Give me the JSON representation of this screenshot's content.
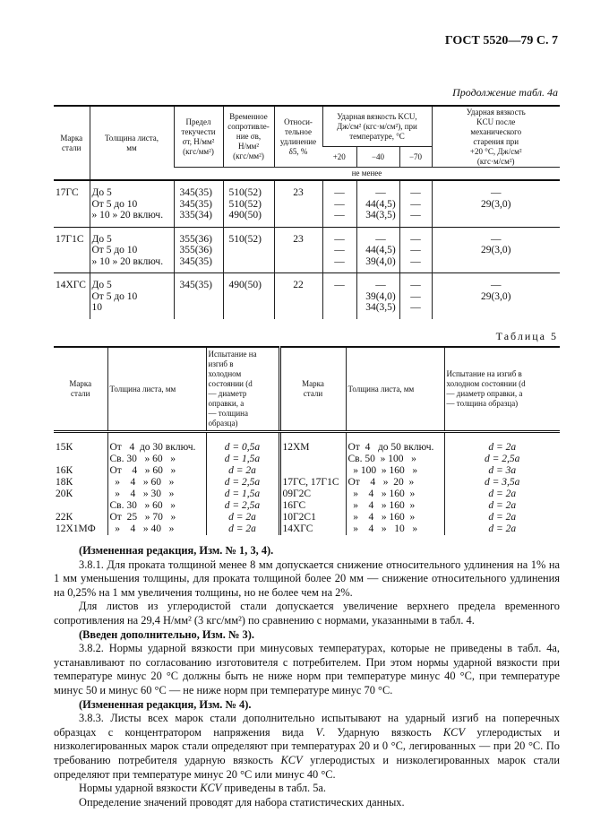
{
  "page_header": "ГОСТ 5520—79 С. 7",
  "table4a": {
    "continuation": "Продолжение табл. 4а",
    "headers": {
      "grade": "Марка\nстали",
      "thickness": "Толщина листа,\nмм",
      "yield": "Предел\nтекучести\nσт, Н/мм²\n(кгс/мм²)",
      "tensile": "Временное\nсопротивле-\nние σв,\nН/мм²\n(кгс/мм²)",
      "elongation": "Относи-\nтельное\nудлинение\nδ5, %",
      "impact": "Ударная вязкость KCU,\nДж/см² (кгс·м/см²), при\nтемпературе, °С",
      "t20": "+20",
      "t40": "−40",
      "t70": "−70",
      "aged": "Ударная вязкость\nKCU после\nмеханического\nстарения при\n+20 °С, Дж/см²\n(кгс·м/см²)",
      "min_note": "не менее"
    },
    "rows": [
      {
        "grade": "17ГС",
        "thickness": "До 5\nОт  5 до  10\n   » 10  »   20 включ.",
        "yield": "345(35)\n345(35)\n335(34)",
        "tensile": "510(52)\n510(52)\n490(50)",
        "elongation": "23",
        "t20": "—\n—\n—",
        "t40": "—\n44(4,5)\n34(3,5)",
        "t70": "—\n—\n—",
        "aged": "—\n29(3,0)"
      },
      {
        "grade": "17Г1С",
        "thickness": "До 5\nОт  5 до  10\n   » 10  »   20 включ.",
        "yield": "355(36)\n355(36)\n345(35)",
        "tensile": "510(52)",
        "elongation": "23",
        "t20": "—\n—\n—",
        "t40": "—\n44(4,5)\n39(4,0)",
        "t70": "—\n—\n—",
        "aged": "—\n29(3,0)"
      },
      {
        "grade": "14ХГС",
        "thickness": "До 5\nОт  5 до  10\n    10",
        "yield": "345(35)",
        "tensile": "490(50)",
        "elongation": "22",
        "t20": "—",
        "t40": "—\n39(4,0)\n34(3,5)",
        "t70": "—\n—\n—",
        "aged": "—\n29(3,0)"
      }
    ]
  },
  "table5": {
    "caption": "Таблица 5",
    "headers": {
      "grade": "Марка\nстали",
      "thickness": "Толщина листа, мм",
      "bend": "Испытание на изгиб в\nхолодном состоянии (d\n— диаметр оправки, a\n— толщина образца)"
    },
    "rows": [
      [
        "15К",
        "От   4  до 30 включ.",
        "d = 0,5a",
        "12ХМ",
        "От  4   до 50 включ.",
        "d = 2a"
      ],
      [
        "",
        "Св. 30   » 60   »",
        "d = 1,5a",
        "",
        "Св. 50  » 100   »",
        "d = 2,5a"
      ],
      [
        "16К",
        "От    4   » 60   »",
        "d = 2a",
        "",
        "  » 100  » 160   »",
        "d = 3a"
      ],
      [
        "18К",
        "  »    4   » 60   »",
        "d = 2,5a",
        "17ГС, 17Г1С",
        "От    4   »  20  »",
        "d = 3,5a"
      ],
      [
        "20К",
        "  »    4   » 30   »",
        "d = 1,5a",
        "09Г2С",
        "  »    4   » 160  »",
        "d = 2a"
      ],
      [
        "",
        "Св. 30   » 60   »",
        "d = 2,5a",
        "16ГС",
        "  »    4   » 160  »",
        "d = 2a"
      ],
      [
        "22К",
        "От  25   » 70   »",
        "d = 2a",
        "10Г2С1",
        "  »    4   » 160  »",
        "d = 2a"
      ],
      [
        "12Х1МФ",
        "  »    4   » 40   »",
        "d = 2a",
        "14ХГС",
        "  »    4   »   10   »",
        "d = 2a"
      ]
    ]
  },
  "paragraphs": [
    [
      [
        "(Измененная редакция, Изм. № 1, 3, 4).",
        "b"
      ]
    ],
    [
      [
        "3.8.1. Для проката толщиной менее 8 мм допускается снижение относительного удлинения на 1% на 1 мм уменьшения толщины, для проката толщиной более 20 мм — снижение относительного удлинения на 0,25% на 1 мм увеличения толщины, но не более чем на 2%.",
        ""
      ]
    ],
    [
      [
        "Для листов из углеродистой стали допускается увеличение верхнего предела временного сопротивления на 29,4 Н/мм² (3 кгс/мм²) по сравнению с нормами, указанными в табл. 4.",
        ""
      ]
    ],
    [
      [
        "(Введен дополнительно, Изм. № 3).",
        "b"
      ]
    ],
    [
      [
        "3.8.2. Нормы ударной вязкости при минусовых температурах, которые не приведены в табл. 4а, устанавливают по согласованию изготовителя с потребителем. При этом нормы ударной вязкости при температуре минус 20 °С должны быть не ниже норм при температуре минус 40 °С, при температуре минус 50 и минус 60 °С — не ниже норм при температуре минус 70 °С.",
        ""
      ]
    ],
    [
      [
        "(Измененная редакция, Изм. № 4).",
        "b"
      ]
    ],
    [
      [
        "3.8.3. Листы всех марок стали дополнительно испытывают на ударный изгиб на поперечных образцах с концентратором напряжения вида ",
        ""
      ],
      [
        "V",
        "i"
      ],
      [
        ".  Ударную вязкость ",
        ""
      ],
      [
        "KCV",
        "i"
      ],
      [
        " углеродистых и низколегированных марок стали определяют при температурах 20 и 0 °С, легированных — при 20 °С. По требованию потребителя ударную вязкость ",
        ""
      ],
      [
        "KCV",
        "i"
      ],
      [
        " углеродистых и низколегированных марок стали определяют при температуре минус 20 °С или минус 40 °С.",
        ""
      ]
    ],
    [
      [
        "Нормы ударной вязкости ",
        ""
      ],
      [
        "KCV",
        "i"
      ],
      [
        " приведены в табл. 5а.",
        ""
      ]
    ],
    [
      [
        "Определение значений проводят для набора статистических данных.",
        ""
      ]
    ]
  ]
}
